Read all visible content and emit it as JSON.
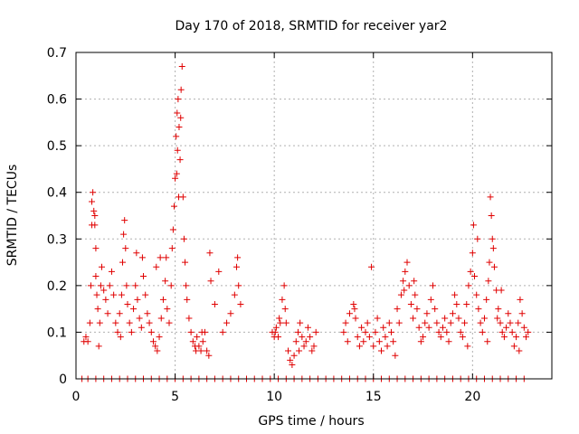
{
  "chart_data": {
    "type": "scatter",
    "title": "Day 170 of 2018, SRMTID for receiver yar2",
    "xlabel": "GPS time / hours",
    "ylabel": "SRMTID / TECUs",
    "xlim": [
      0,
      24
    ],
    "ylim": [
      0,
      0.7
    ],
    "xticks": [
      0,
      5,
      10,
      15,
      20
    ],
    "xtick_labels": [
      "0",
      "5",
      "10",
      "15",
      "20"
    ],
    "yticks": [
      0,
      0.1,
      0.2,
      0.3,
      0.4,
      0.5,
      0.6,
      0.7
    ],
    "ytick_labels": [
      "0",
      "0.1",
      "0.2",
      "0.3",
      "0.4",
      "0.5",
      "0.6",
      "0.7"
    ],
    "grid": true,
    "marker": "+",
    "color": "#e00000",
    "series": [
      {
        "name": "SRMTID",
        "points": [
          [
            0.4,
            0.08
          ],
          [
            0.5,
            0.09
          ],
          [
            0.6,
            0.08
          ],
          [
            0.7,
            0.12
          ],
          [
            0.75,
            0.2
          ],
          [
            0.8,
            0.33
          ],
          [
            0.8,
            0.38
          ],
          [
            0.85,
            0.4
          ],
          [
            0.9,
            0.36
          ],
          [
            0.95,
            0.35
          ],
          [
            1.0,
            0.28
          ],
          [
            1.0,
            0.22
          ],
          [
            1.05,
            0.18
          ],
          [
            1.1,
            0.15
          ],
          [
            1.2,
            0.12
          ],
          [
            1.25,
            0.2
          ],
          [
            1.3,
            0.24
          ],
          [
            1.4,
            0.19
          ],
          [
            1.5,
            0.17
          ],
          [
            1.6,
            0.14
          ],
          [
            1.7,
            0.2
          ],
          [
            1.8,
            0.23
          ],
          [
            1.9,
            0.18
          ],
          [
            2.0,
            0.12
          ],
          [
            2.1,
            0.1
          ],
          [
            2.2,
            0.14
          ],
          [
            2.3,
            0.18
          ],
          [
            2.35,
            0.25
          ],
          [
            2.4,
            0.31
          ],
          [
            2.45,
            0.34
          ],
          [
            2.5,
            0.28
          ],
          [
            2.55,
            0.2
          ],
          [
            2.6,
            0.16
          ],
          [
            2.7,
            0.12
          ],
          [
            2.8,
            0.1
          ],
          [
            2.9,
            0.15
          ],
          [
            3.0,
            0.2
          ],
          [
            3.1,
            0.17
          ],
          [
            3.2,
            0.13
          ],
          [
            3.3,
            0.11
          ],
          [
            3.35,
            0.26
          ],
          [
            3.4,
            0.22
          ],
          [
            3.5,
            0.18
          ],
          [
            3.6,
            0.14
          ],
          [
            3.7,
            0.12
          ],
          [
            3.8,
            0.1
          ],
          [
            3.9,
            0.08
          ],
          [
            4.0,
            0.07
          ],
          [
            4.1,
            0.06
          ],
          [
            4.2,
            0.09
          ],
          [
            4.3,
            0.13
          ],
          [
            4.4,
            0.17
          ],
          [
            4.5,
            0.21
          ],
          [
            4.55,
            0.26
          ],
          [
            4.6,
            0.15
          ],
          [
            4.7,
            0.12
          ],
          [
            4.8,
            0.2
          ],
          [
            4.85,
            0.28
          ],
          [
            4.9,
            0.32
          ],
          [
            4.95,
            0.37
          ],
          [
            5.0,
            0.43
          ],
          [
            5.05,
            0.52
          ],
          [
            5.1,
            0.57
          ],
          [
            5.15,
            0.6
          ],
          [
            5.2,
            0.54
          ],
          [
            5.25,
            0.47
          ],
          [
            5.3,
            0.62
          ],
          [
            5.35,
            0.67
          ],
          [
            5.4,
            0.39
          ],
          [
            5.45,
            0.3
          ],
          [
            5.5,
            0.25
          ],
          [
            5.55,
            0.2
          ],
          [
            5.6,
            0.17
          ],
          [
            5.7,
            0.13
          ],
          [
            5.8,
            0.1
          ],
          [
            5.9,
            0.08
          ],
          [
            6.0,
            0.07
          ],
          [
            6.1,
            0.09
          ],
          [
            6.2,
            0.07
          ],
          [
            6.3,
            0.06
          ],
          [
            6.4,
            0.08
          ],
          [
            6.5,
            0.1
          ],
          [
            6.6,
            0.06
          ],
          [
            6.7,
            0.05
          ],
          [
            6.75,
            0.27
          ],
          [
            6.8,
            0.21
          ],
          [
            7.0,
            0.16
          ],
          [
            7.2,
            0.23
          ],
          [
            7.4,
            0.1
          ],
          [
            7.6,
            0.12
          ],
          [
            7.8,
            0.14
          ],
          [
            8.0,
            0.18
          ],
          [
            8.1,
            0.24
          ],
          [
            8.2,
            0.2
          ],
          [
            8.3,
            0.16
          ],
          [
            9.9,
            0.1
          ],
          [
            10.0,
            0.09
          ],
          [
            10.05,
            0.1
          ],
          [
            10.1,
            0.11
          ],
          [
            10.2,
            0.09
          ],
          [
            10.3,
            0.12
          ],
          [
            10.4,
            0.17
          ],
          [
            10.5,
            0.2
          ],
          [
            10.55,
            0.15
          ],
          [
            10.6,
            0.12
          ],
          [
            10.7,
            0.06
          ],
          [
            10.8,
            0.04
          ],
          [
            10.9,
            0.03
          ],
          [
            11.0,
            0.05
          ],
          [
            11.1,
            0.08
          ],
          [
            11.2,
            0.1
          ],
          [
            11.3,
            0.12
          ],
          [
            11.4,
            0.09
          ],
          [
            11.5,
            0.07
          ],
          [
            11.6,
            0.08
          ],
          [
            11.7,
            0.11
          ],
          [
            11.8,
            0.09
          ],
          [
            11.9,
            0.06
          ],
          [
            12.0,
            0.07
          ],
          [
            12.1,
            0.1
          ],
          [
            13.5,
            0.1
          ],
          [
            13.6,
            0.12
          ],
          [
            13.7,
            0.08
          ],
          [
            13.8,
            0.14
          ],
          [
            14.0,
            0.16
          ],
          [
            14.1,
            0.13
          ],
          [
            14.2,
            0.09
          ],
          [
            14.3,
            0.07
          ],
          [
            14.4,
            0.11
          ],
          [
            14.5,
            0.08
          ],
          [
            14.6,
            0.1
          ],
          [
            14.7,
            0.12
          ],
          [
            14.8,
            0.09
          ],
          [
            14.9,
            0.24
          ],
          [
            15.0,
            0.07
          ],
          [
            15.1,
            0.1
          ],
          [
            15.2,
            0.13
          ],
          [
            15.3,
            0.08
          ],
          [
            15.4,
            0.06
          ],
          [
            15.5,
            0.11
          ],
          [
            15.6,
            0.09
          ],
          [
            15.7,
            0.07
          ],
          [
            15.8,
            0.12
          ],
          [
            15.9,
            0.1
          ],
          [
            16.0,
            0.08
          ],
          [
            16.1,
            0.05
          ],
          [
            16.2,
            0.15
          ],
          [
            16.3,
            0.12
          ],
          [
            16.4,
            0.18
          ],
          [
            16.5,
            0.21
          ],
          [
            16.6,
            0.23
          ],
          [
            16.7,
            0.25
          ],
          [
            16.8,
            0.2
          ],
          [
            16.9,
            0.16
          ],
          [
            17.0,
            0.13
          ],
          [
            17.1,
            0.18
          ],
          [
            17.2,
            0.15
          ],
          [
            17.3,
            0.11
          ],
          [
            17.4,
            0.08
          ],
          [
            17.5,
            0.09
          ],
          [
            17.6,
            0.12
          ],
          [
            17.7,
            0.14
          ],
          [
            17.8,
            0.11
          ],
          [
            17.9,
            0.17
          ],
          [
            18.0,
            0.2
          ],
          [
            18.1,
            0.15
          ],
          [
            18.2,
            0.12
          ],
          [
            18.3,
            0.1
          ],
          [
            18.4,
            0.09
          ],
          [
            18.5,
            0.11
          ],
          [
            18.6,
            0.13
          ],
          [
            18.7,
            0.1
          ],
          [
            18.8,
            0.08
          ],
          [
            18.9,
            0.12
          ],
          [
            19.0,
            0.14
          ],
          [
            19.1,
            0.18
          ],
          [
            19.2,
            0.16
          ],
          [
            19.3,
            0.13
          ],
          [
            19.4,
            0.1
          ],
          [
            19.5,
            0.09
          ],
          [
            19.6,
            0.12
          ],
          [
            19.7,
            0.16
          ],
          [
            19.8,
            0.2
          ],
          [
            19.9,
            0.23
          ],
          [
            20.0,
            0.27
          ],
          [
            20.05,
            0.33
          ],
          [
            20.1,
            0.22
          ],
          [
            20.2,
            0.18
          ],
          [
            20.3,
            0.15
          ],
          [
            20.4,
            0.12
          ],
          [
            20.5,
            0.1
          ],
          [
            20.6,
            0.13
          ],
          [
            20.7,
            0.17
          ],
          [
            20.8,
            0.21
          ],
          [
            20.85,
            0.25
          ],
          [
            20.9,
            0.39
          ],
          [
            20.95,
            0.35
          ],
          [
            21.0,
            0.3
          ],
          [
            21.05,
            0.28
          ],
          [
            21.1,
            0.24
          ],
          [
            21.2,
            0.19
          ],
          [
            21.3,
            0.15
          ],
          [
            21.4,
            0.12
          ],
          [
            21.5,
            0.1
          ],
          [
            21.6,
            0.09
          ],
          [
            21.7,
            0.11
          ],
          [
            21.8,
            0.14
          ],
          [
            21.9,
            0.12
          ],
          [
            22.0,
            0.1
          ],
          [
            22.1,
            0.07
          ],
          [
            22.2,
            0.09
          ],
          [
            22.3,
            0.12
          ],
          [
            22.4,
            0.17
          ],
          [
            22.5,
            0.14
          ],
          [
            22.6,
            0.11
          ],
          [
            22.7,
            0.09
          ],
          [
            22.8,
            0.1
          ],
          [
            0.95,
            0.33
          ],
          [
            1.15,
            0.07
          ],
          [
            2.25,
            0.09
          ],
          [
            3.05,
            0.27
          ],
          [
            4.05,
            0.24
          ],
          [
            4.25,
            0.26
          ],
          [
            5.28,
            0.56
          ],
          [
            5.12,
            0.49
          ],
          [
            5.08,
            0.44
          ],
          [
            5.18,
            0.39
          ],
          [
            6.05,
            0.06
          ],
          [
            6.35,
            0.1
          ],
          [
            8.15,
            0.26
          ],
          [
            10.25,
            0.13
          ],
          [
            11.25,
            0.06
          ],
          [
            14.05,
            0.15
          ],
          [
            16.55,
            0.19
          ],
          [
            17.05,
            0.21
          ],
          [
            19.75,
            0.07
          ],
          [
            20.25,
            0.3
          ],
          [
            20.75,
            0.08
          ],
          [
            21.25,
            0.13
          ],
          [
            21.45,
            0.19
          ],
          [
            22.35,
            0.06
          ],
          [
            0.3,
            0.0
          ],
          [
            0.6,
            0.0
          ],
          [
            1.0,
            0.0
          ],
          [
            1.4,
            0.0
          ],
          [
            1.8,
            0.0
          ],
          [
            2.2,
            0.0
          ],
          [
            2.6,
            0.0
          ],
          [
            3.0,
            0.0
          ],
          [
            3.4,
            0.0
          ],
          [
            3.8,
            0.0
          ],
          [
            4.2,
            0.0
          ],
          [
            4.6,
            0.0
          ],
          [
            5.0,
            0.0
          ],
          [
            5.4,
            0.0
          ],
          [
            5.8,
            0.0
          ],
          [
            6.2,
            0.0
          ],
          [
            6.6,
            0.0
          ],
          [
            7.0,
            0.0
          ],
          [
            7.4,
            0.0
          ],
          [
            7.8,
            0.0
          ],
          [
            8.2,
            0.0
          ],
          [
            8.6,
            0.0
          ],
          [
            9.0,
            0.0
          ],
          [
            9.4,
            0.0
          ],
          [
            9.8,
            0.0
          ],
          [
            10.2,
            0.0
          ],
          [
            10.6,
            0.0
          ],
          [
            11.0,
            0.0
          ],
          [
            11.4,
            0.0
          ],
          [
            11.8,
            0.0
          ],
          [
            12.2,
            0.0
          ],
          [
            12.6,
            0.0
          ],
          [
            13.0,
            0.0
          ],
          [
            13.4,
            0.0
          ],
          [
            13.8,
            0.0
          ],
          [
            14.2,
            0.0
          ],
          [
            14.6,
            0.0
          ],
          [
            15.0,
            0.0
          ],
          [
            15.4,
            0.0
          ],
          [
            15.8,
            0.0
          ],
          [
            16.2,
            0.0
          ],
          [
            16.6,
            0.0
          ],
          [
            17.0,
            0.0
          ],
          [
            17.4,
            0.0
          ],
          [
            17.8,
            0.0
          ],
          [
            18.2,
            0.0
          ],
          [
            18.6,
            0.0
          ],
          [
            19.0,
            0.0
          ],
          [
            19.4,
            0.0
          ],
          [
            19.8,
            0.0
          ],
          [
            20.2,
            0.0
          ],
          [
            20.6,
            0.0
          ],
          [
            21.0,
            0.0
          ],
          [
            21.4,
            0.0
          ],
          [
            21.8,
            0.0
          ],
          [
            22.2,
            0.0
          ],
          [
            22.6,
            0.0
          ]
        ]
      }
    ]
  }
}
